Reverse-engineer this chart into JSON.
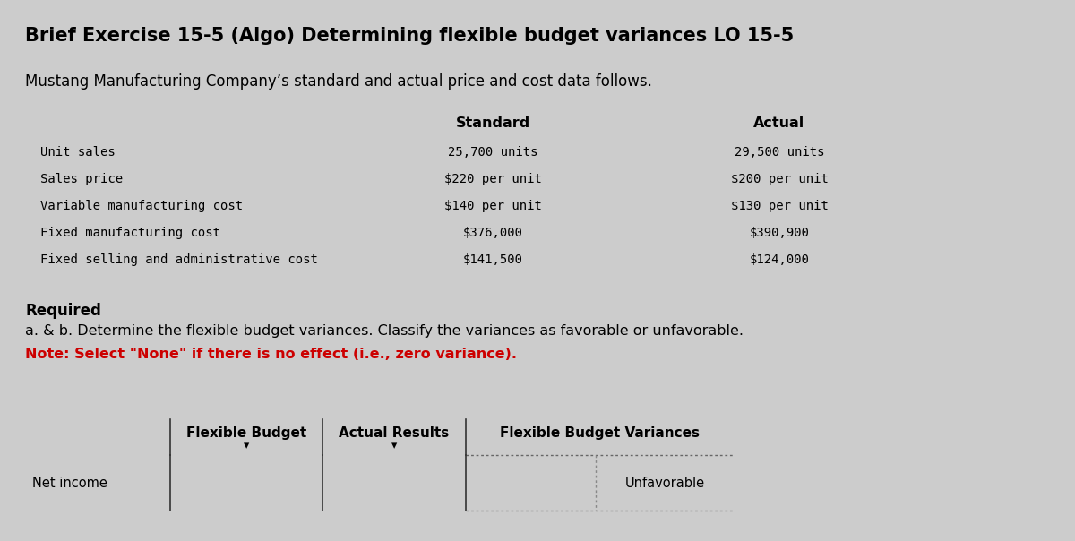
{
  "title": "Brief Exercise 15-5 (Algo) Determining flexible budget variances LO 15-5",
  "subtitle": "Mustang Manufacturing Company’s standard and actual price and cost data follows.",
  "bg_color": "#cccccc",
  "upper_table_bg": "#e8e8e8",
  "upper_header_bg": "#b8b8b8",
  "header_bg": "#5b9bd5",
  "row_labels": [
    "Unit sales",
    "Sales price",
    "Variable manufacturing cost",
    "Fixed manufacturing cost",
    "Fixed selling and administrative cost"
  ],
  "standard_values": [
    "25,700 units",
    "$220 per unit",
    "$140 per unit",
    "$376,000",
    "$141,500"
  ],
  "actual_values": [
    "29,500 units",
    "$200 per unit",
    "$130 per unit",
    "$390,900",
    "$124,000"
  ],
  "required_text": "Required",
  "ab_text": "a. & b. Determine the flexible budget variances. Classify the variances as favorable or unfavorable.",
  "note_text": "Note: Select \"None\" if there is no effect (i.e., zero variance).",
  "bottom_table_headers": [
    "",
    "Flexible Budget",
    "Actual Results",
    "Flexible Budget Variances"
  ],
  "bottom_table_row_label": "Net income",
  "bottom_table_unfavorable": "Unfavorable",
  "col_header_standard": "Standard",
  "col_header_actual": "Actual"
}
